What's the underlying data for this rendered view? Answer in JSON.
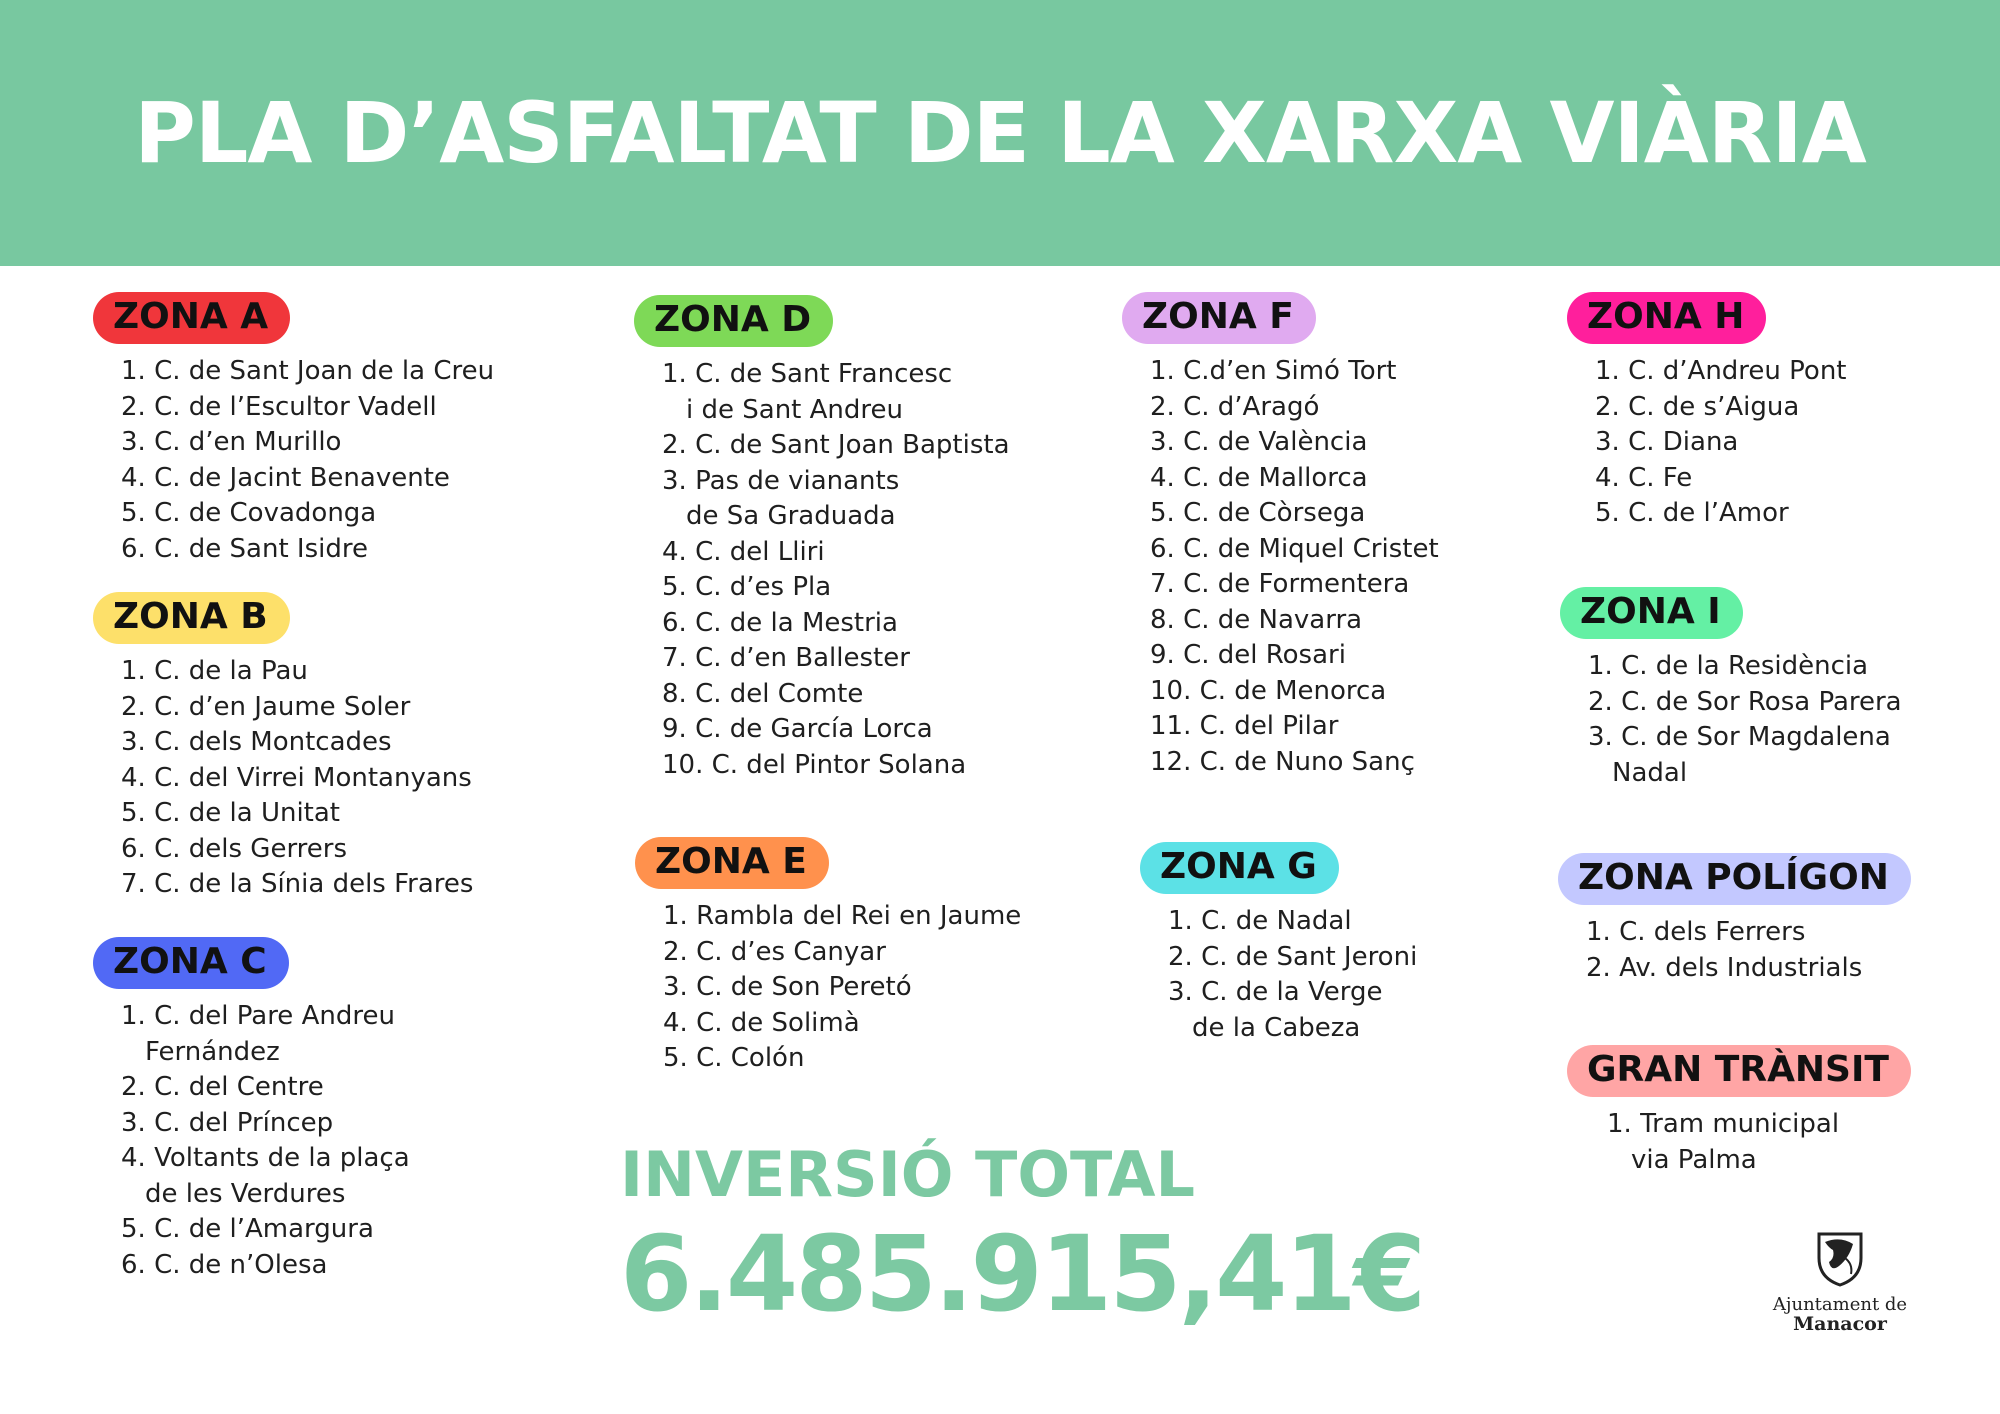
{
  "title": "PLA D’ASFALTAT DE LA XARXA VIÀRIA",
  "zones": {
    "a": {
      "label": "ZONA A",
      "color": "#f0363b",
      "items": [
        {
          "num": "1.",
          "text": "C. de Sant Joan de la Creu"
        },
        {
          "num": "2.",
          "text": "C. de l’Escultor Vadell"
        },
        {
          "num": "3.",
          "text": "C. d’en Murillo"
        },
        {
          "num": "4.",
          "text": "C. de Jacint Benavente"
        },
        {
          "num": "5.",
          "text": "C. de Covadonga"
        },
        {
          "num": "6.",
          "text": "C. de Sant Isidre"
        }
      ]
    },
    "b": {
      "label": "ZONA B",
      "color": "#fde06a",
      "items": [
        {
          "num": "1.",
          "text": "C. de la Pau"
        },
        {
          "num": "2.",
          "text": "C. d’en Jaume Soler"
        },
        {
          "num": "3.",
          "text": "C. dels Montcades"
        },
        {
          "num": "4.",
          "text": "C. del Virrei Montanyans"
        },
        {
          "num": "5.",
          "text": "C. de la Unitat"
        },
        {
          "num": "6.",
          "text": "C. dels Gerrers"
        },
        {
          "num": "7.",
          "text": "C. de la Sínia dels Frares"
        }
      ]
    },
    "c": {
      "label": "ZONA C",
      "color": "#5169f5",
      "items": [
        {
          "num": "1.",
          "text": "C. del Pare Andreu",
          "cont": "Fernández"
        },
        {
          "num": "2.",
          "text": "C. del Centre"
        },
        {
          "num": "3.",
          "text": "C. del Príncep"
        },
        {
          "num": "4.",
          "text": "Voltants de la plaça",
          "cont": "de les Verdures"
        },
        {
          "num": "5.",
          "text": "C. de l’Amargura"
        },
        {
          "num": "6.",
          "text": "C. de n’Olesa"
        }
      ]
    },
    "d": {
      "label": "ZONA D",
      "color": "#7ed957",
      "items": [
        {
          "num": "1.",
          "text": "C. de Sant Francesc",
          "cont": "i de Sant Andreu"
        },
        {
          "num": "2.",
          "text": "C. de Sant Joan Baptista"
        },
        {
          "num": "3.",
          "text": "Pas de vianants",
          "cont": "de Sa Graduada"
        },
        {
          "num": "4.",
          "text": "C. del Lliri"
        },
        {
          "num": "5.",
          "text": "C. d’es Pla"
        },
        {
          "num": "6.",
          "text": "C. de la Mestria"
        },
        {
          "num": "7.",
          "text": "C. d’en Ballester"
        },
        {
          "num": "8.",
          "text": "C. del Comte"
        },
        {
          "num": "9.",
          "text": "C. de García Lorca"
        },
        {
          "num": "10.",
          "text": "C. del Pintor Solana"
        }
      ]
    },
    "e": {
      "label": "ZONA E",
      "color": "#ff914d",
      "items": [
        {
          "num": "1.",
          "text": "Rambla del Rei en Jaume"
        },
        {
          "num": "2.",
          "text": "C. d’es Canyar"
        },
        {
          "num": "3.",
          "text": "C. de Son Peretó"
        },
        {
          "num": "4.",
          "text": "C. de Solimà"
        },
        {
          "num": "5.",
          "text": "C. Colón"
        }
      ]
    },
    "f": {
      "label": "ZONA F",
      "color": "#e0aaf0",
      "items": [
        {
          "num": "1.",
          "text": "C.d’en Simó Tort"
        },
        {
          "num": "2.",
          "text": "C. d’Aragó"
        },
        {
          "num": "3.",
          "text": "C. de València"
        },
        {
          "num": "4.",
          "text": "C. de Mallorca"
        },
        {
          "num": "5.",
          "text": "C. de Còrsega"
        },
        {
          "num": "6.",
          "text": "C. de Miquel Cristet"
        },
        {
          "num": "7.",
          "text": "C. de Formentera"
        },
        {
          "num": "8.",
          "text": "C. de Navarra"
        },
        {
          "num": "9.",
          "text": "C. del Rosari"
        },
        {
          "num": "10.",
          "text": "C. de Menorca"
        },
        {
          "num": "11.",
          "text": "C. del Pilar"
        },
        {
          "num": "12.",
          "text": "C. de Nuno Sanç"
        }
      ]
    },
    "g": {
      "label": "ZONA G",
      "color": "#5ce1e6",
      "items": [
        {
          "num": "1.",
          "text": "C. de Nadal"
        },
        {
          "num": "2.",
          "text": "C. de Sant Jeroni"
        },
        {
          "num": "3.",
          "text": "C. de la Verge",
          "cont": "de la Cabeza"
        }
      ]
    },
    "h": {
      "label": "ZONA H",
      "color": "#ff1f9c",
      "items": [
        {
          "num": "1.",
          "text": "C. d’Andreu Pont"
        },
        {
          "num": "2.",
          "text": "C. de s’Aigua"
        },
        {
          "num": "3.",
          "text": "C. Diana"
        },
        {
          "num": "4.",
          "text": "C. Fe"
        },
        {
          "num": "5.",
          "text": "C. de l’Amor"
        }
      ]
    },
    "i": {
      "label": "ZONA I",
      "color": "#64f0a4",
      "items": [
        {
          "num": "1.",
          "text": "C. de la Residència"
        },
        {
          "num": "2.",
          "text": "C. de Sor Rosa Parera"
        },
        {
          "num": "3.",
          "text": "C. de Sor Magdalena",
          "cont": "Nadal"
        }
      ]
    },
    "poligon": {
      "label": "ZONA POLÍGON",
      "color": "#c3c8ff",
      "items": [
        {
          "num": "1.",
          "text": "C. dels Ferrers"
        },
        {
          "num": "2.",
          "text": "Av. dels Industrials"
        }
      ]
    },
    "transit": {
      "label": "GRAN TRÀNSIT",
      "color": "#ffa5a5",
      "items": [
        {
          "num": "1.",
          "text": "Tram municipal",
          "cont": "via Palma"
        }
      ]
    }
  },
  "investment": {
    "label": "INVERSIÓ TOTAL",
    "amount": "6.485.915,41€"
  },
  "logo": {
    "icon": "shield-crest-icon",
    "line1": "Ajuntament de",
    "line2": "Manacor"
  }
}
